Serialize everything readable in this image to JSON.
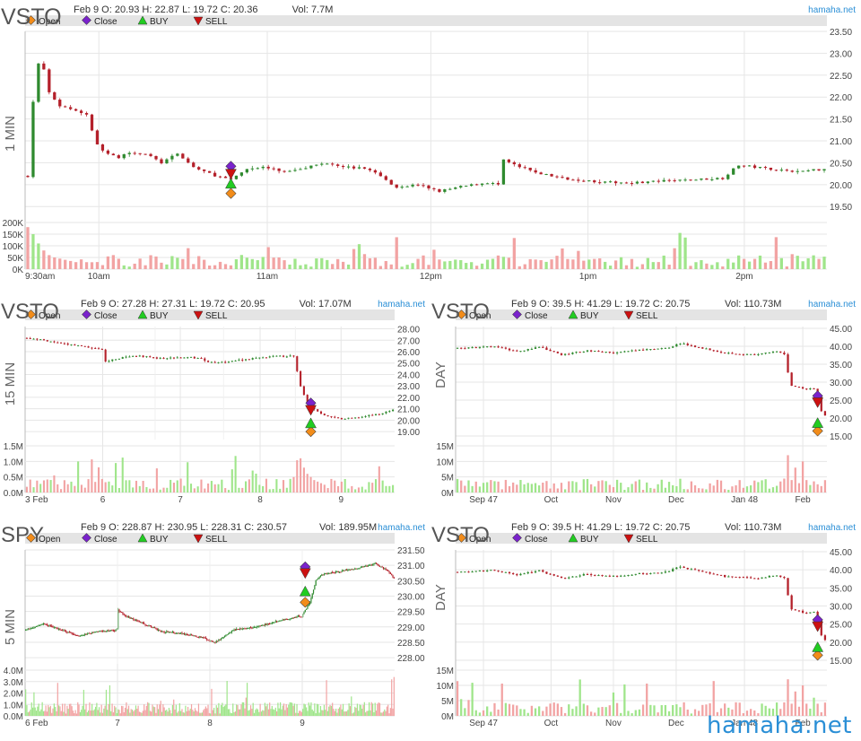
{
  "watermark": "hamaha.net",
  "colors": {
    "up": "#2f8a2f",
    "down": "#b4202a",
    "vol_up": "#9fe58a",
    "vol_down": "#f2a3a3",
    "legend_bg": "#e4e4e4",
    "grid": "#e6e6e6",
    "brand": "#2b8fd6",
    "open_marker": "#f28c1a",
    "close_marker": "#7a22cc",
    "buy_marker": "#22cc22",
    "sell_marker": "#cc1111"
  },
  "legend": [
    {
      "label": "Open",
      "icon": "diamond",
      "color": "#f28c1a"
    },
    {
      "label": "Close",
      "icon": "diamond",
      "color": "#7a22cc"
    },
    {
      "label": "BUY",
      "icon": "triangle-up",
      "color": "#22cc22"
    },
    {
      "label": "SELL",
      "icon": "triangle-down",
      "color": "#cc1111"
    }
  ],
  "chart_data": [
    {
      "id": "p1",
      "type": "candlestick",
      "symbol": "VSTO",
      "timeframe_label": "1 MIN",
      "header": "Feb 9 O: 20.93 H: 22.87 L: 19.72 C: 20.36",
      "volume_label": "Vol: 7.7M",
      "site": "hamaha.net",
      "ylim": [
        19.3,
        23.5
      ],
      "y_ticks": [
        "23.50",
        "23.00",
        "22.50",
        "22.00",
        "21.50",
        "21.00",
        "20.50",
        "20.00",
        "19.50"
      ],
      "vol_ticks": [
        "200K",
        "150K",
        "100K",
        "50K",
        "0K"
      ],
      "vol_max": 200000,
      "x_ticks": [
        {
          "label": "9:30am",
          "pos": 0
        },
        {
          "label": "10am",
          "pos": 0.092
        },
        {
          "label": "11am",
          "pos": 0.302
        },
        {
          "label": "12pm",
          "pos": 0.506
        },
        {
          "label": "1pm",
          "pos": 0.702
        },
        {
          "label": "2pm",
          "pos": 0.897
        }
      ],
      "n": 150,
      "anchors": [
        [
          0,
          20.2
        ],
        [
          0.5,
          21.2
        ],
        [
          1.5,
          22.6
        ],
        [
          2.5,
          22.9
        ],
        [
          4,
          22.1
        ],
        [
          6,
          21.8
        ],
        [
          9,
          21.7
        ],
        [
          11,
          21.6
        ],
        [
          13,
          20.9
        ],
        [
          15,
          20.7
        ],
        [
          17,
          20.6
        ],
        [
          19,
          20.75
        ],
        [
          22,
          20.7
        ],
        [
          25,
          20.5
        ],
        [
          28,
          20.7
        ],
        [
          31,
          20.4
        ],
        [
          34,
          20.25
        ],
        [
          38,
          20.1
        ],
        [
          39,
          20.2
        ],
        [
          41,
          20.36
        ],
        [
          44,
          20.4
        ],
        [
          48,
          20.3
        ],
        [
          52,
          20.4
        ],
        [
          56,
          20.5
        ],
        [
          60,
          20.4
        ],
        [
          64,
          20.35
        ],
        [
          67,
          20.1
        ],
        [
          69,
          19.95
        ],
        [
          73,
          20.0
        ],
        [
          77,
          19.85
        ],
        [
          81,
          19.95
        ],
        [
          86,
          20.05
        ],
        [
          88,
          20.0
        ],
        [
          89,
          20.55
        ],
        [
          92,
          20.4
        ],
        [
          96,
          20.25
        ],
        [
          100,
          20.15
        ],
        [
          104,
          20.1
        ],
        [
          108,
          20.05
        ],
        [
          114,
          20.05
        ],
        [
          122,
          20.1
        ],
        [
          130,
          20.15
        ],
        [
          133,
          20.45
        ],
        [
          136,
          20.4
        ],
        [
          140,
          20.35
        ],
        [
          144,
          20.3
        ],
        [
          149,
          20.36
        ]
      ],
      "volume": [
        180000,
        150000,
        110000,
        80000,
        60000,
        50000,
        45000,
        40000,
        35000,
        30000
      ],
      "markers": {
        "idx": 38,
        "open": 19.8,
        "close": 20.42,
        "buy": 20.02,
        "sell": 20.25
      }
    },
    {
      "id": "p2",
      "type": "candlestick",
      "symbol": "VSTO",
      "timeframe_label": "15 MIN",
      "header": "Feb 9 O: 27.28 H: 27.31 L: 19.72 C: 20.95",
      "volume_label": "Vol: 17.07M",
      "site": "hamaha.net",
      "ylim": [
        18.3,
        28.2
      ],
      "y_ticks": [
        "28.00",
        "27.00",
        "26.00",
        "25.00",
        "24.00",
        "23.00",
        "22.00",
        "21.00",
        "20.00",
        "19.00"
      ],
      "vol_ticks": [
        "1.5M",
        "1.0M",
        "0.5M",
        "0.0M"
      ],
      "vol_max": 1500000,
      "x_ticks": [
        {
          "label": "3 Feb",
          "pos": 0.0
        },
        {
          "label": "6",
          "pos": 0.21
        },
        {
          "label": "7",
          "pos": 0.42
        },
        {
          "label": "8",
          "pos": 0.636
        },
        {
          "label": "9",
          "pos": 0.855
        }
      ],
      "n": 108,
      "gaps": [
        [
          37,
          38
        ],
        [
          57,
          58
        ],
        [
          78,
          79
        ]
      ],
      "anchors": [
        [
          0,
          27.2
        ],
        [
          5,
          27.0
        ],
        [
          10,
          26.7
        ],
        [
          16,
          26.5
        ],
        [
          20,
          26.3
        ],
        [
          22,
          26.2
        ],
        [
          23,
          25.1
        ],
        [
          25,
          25.3
        ],
        [
          28,
          25.5
        ],
        [
          33,
          25.6
        ],
        [
          37,
          25.5
        ],
        [
          38,
          25.4
        ],
        [
          43,
          25.45
        ],
        [
          48,
          25.5
        ],
        [
          51,
          25.4
        ],
        [
          52,
          25.2
        ],
        [
          55,
          25.0
        ],
        [
          60,
          25.2
        ],
        [
          66,
          25.4
        ],
        [
          72,
          25.6
        ],
        [
          78,
          25.6
        ],
        [
          80,
          23.0
        ],
        [
          82,
          21.5
        ],
        [
          84,
          21.0
        ],
        [
          86,
          20.6
        ],
        [
          88,
          20.3
        ],
        [
          92,
          20.1
        ],
        [
          96,
          20.2
        ],
        [
          100,
          20.4
        ],
        [
          104,
          20.6
        ],
        [
          107,
          20.95
        ]
      ],
      "volume": [
        1100000,
        800000,
        600000,
        500000,
        400000,
        350000,
        300000,
        250000
      ],
      "markers": {
        "idx": 83,
        "open": 19.0,
        "close": 21.5,
        "buy": 19.72,
        "sell": 20.9
      }
    },
    {
      "id": "p3",
      "type": "candlestick",
      "symbol": "VSTO",
      "timeframe_label": "DAY",
      "header": "Feb 9 O: 39.5 H: 41.29 L: 19.72 C: 20.75",
      "volume_label": "Vol: 110.73M",
      "site": "hamaha.net",
      "ylim": [
        14.0,
        45.5
      ],
      "y_ticks": [
        "45.00",
        "40.00",
        "35.00",
        "30.00",
        "25.00",
        "20.00",
        "15.00"
      ],
      "vol_ticks": [
        "15M",
        "10M",
        "5M",
        "0M"
      ],
      "vol_max": 15000000,
      "x_ticks": [
        {
          "label": "Sep 47",
          "pos": 0.075
        },
        {
          "label": "Oct",
          "pos": 0.257
        },
        {
          "label": "Nov",
          "pos": 0.425
        },
        {
          "label": "Dec",
          "pos": 0.594
        },
        {
          "label": "Jan 48",
          "pos": 0.778
        },
        {
          "label": "Feb",
          "pos": 0.935
        }
      ],
      "n": 100,
      "anchors": [
        [
          0,
          39.4
        ],
        [
          10,
          39.9
        ],
        [
          16,
          38.6
        ],
        [
          22,
          39.8
        ],
        [
          28,
          37.6
        ],
        [
          35,
          38.8
        ],
        [
          42,
          38.2
        ],
        [
          50,
          39.0
        ],
        [
          56,
          39.4
        ],
        [
          60,
          40.8
        ],
        [
          66,
          39.5
        ],
        [
          72,
          38.2
        ],
        [
          80,
          37.6
        ],
        [
          86,
          38.5
        ],
        [
          88,
          37.8
        ],
        [
          89,
          32.8
        ],
        [
          90,
          29.0
        ],
        [
          94,
          28.1
        ],
        [
          96,
          28.3
        ],
        [
          97,
          26.0
        ],
        [
          98,
          22.0
        ],
        [
          99,
          20.75
        ]
      ],
      "volume": [
        12000000,
        4000000,
        8000000,
        3000000,
        10000000,
        4000000
      ],
      "markers": {
        "idx": 97,
        "open": 16.4,
        "close": 26.2,
        "buy": 18.6,
        "sell": 24.4
      }
    },
    {
      "id": "p4",
      "type": "candlestick",
      "symbol": "SPY",
      "timeframe_label": "5 MIN",
      "header": "Feb 9 O: 228.87 H: 230.95 L: 228.31 C: 230.57",
      "volume_label": "Vol: 189.95M",
      "site": "hamaha.net",
      "ylim": [
        227.8,
        231.5
      ],
      "y_ticks": [
        "231.50",
        "231.00",
        "230.50",
        "230.00",
        "229.50",
        "229.00",
        "228.50",
        "228.00"
      ],
      "vol_ticks": [
        "4.0M",
        "3.0M",
        "2.0M",
        "1.0M",
        "0.0M"
      ],
      "vol_max": 4000000,
      "x_ticks": [
        {
          "label": "6 Feb",
          "pos": 0.0
        },
        {
          "label": "7",
          "pos": 0.25
        },
        {
          "label": "8",
          "pos": 0.5
        },
        {
          "label": "9",
          "pos": 0.75
        }
      ],
      "n": 312,
      "gaps": [
        [
          77,
          78
        ],
        [
          155,
          156
        ],
        [
          233,
          234
        ]
      ],
      "anchors": [
        [
          0,
          228.9
        ],
        [
          15,
          229.1
        ],
        [
          30,
          228.9
        ],
        [
          45,
          228.7
        ],
        [
          60,
          228.85
        ],
        [
          77,
          228.9
        ],
        [
          78,
          229.55
        ],
        [
          85,
          229.35
        ],
        [
          100,
          229.1
        ],
        [
          115,
          228.85
        ],
        [
          130,
          228.8
        ],
        [
          150,
          228.65
        ],
        [
          155,
          228.55
        ],
        [
          160,
          228.5
        ],
        [
          175,
          228.9
        ],
        [
          195,
          229.0
        ],
        [
          215,
          229.2
        ],
        [
          230,
          229.35
        ],
        [
          233,
          229.3
        ],
        [
          234,
          229.4
        ],
        [
          240,
          229.8
        ],
        [
          245,
          230.5
        ],
        [
          250,
          230.7
        ],
        [
          265,
          230.8
        ],
        [
          280,
          230.9
        ],
        [
          295,
          231.05
        ],
        [
          305,
          230.85
        ],
        [
          311,
          230.57
        ]
      ],
      "volume": [
        3400000,
        1500000,
        1300000,
        1200000
      ],
      "markers": {
        "idx": 236,
        "open": 229.8,
        "close": 230.95,
        "buy": 230.15,
        "sell": 230.75
      }
    },
    {
      "id": "p5",
      "type": "candlestick",
      "symbol": "VSTO",
      "timeframe_label": "DAY",
      "header": "Feb 9 O: 39.5 H: 41.29 L: 19.72 C: 20.75",
      "volume_label": "Vol: 110.73M",
      "site": "hamaha.net",
      "ylim": [
        14.0,
        45.5
      ],
      "y_ticks": [
        "45.00",
        "40.00",
        "35.00",
        "30.00",
        "25.00",
        "20.00",
        "15.00"
      ],
      "vol_ticks": [
        "15M",
        "10M",
        "5M",
        "0M"
      ],
      "vol_max": 15000000,
      "x_ticks": [
        {
          "label": "Sep 47",
          "pos": 0.075
        },
        {
          "label": "Oct",
          "pos": 0.257
        },
        {
          "label": "Nov",
          "pos": 0.425
        },
        {
          "label": "Dec",
          "pos": 0.594
        },
        {
          "label": "Jan 48",
          "pos": 0.778
        },
        {
          "label": "Feb",
          "pos": 0.935
        }
      ],
      "n": 100,
      "anchors": [
        [
          0,
          39.4
        ],
        [
          10,
          39.9
        ],
        [
          16,
          38.6
        ],
        [
          22,
          39.8
        ],
        [
          28,
          37.6
        ],
        [
          35,
          38.8
        ],
        [
          42,
          38.2
        ],
        [
          50,
          39.0
        ],
        [
          56,
          39.4
        ],
        [
          60,
          40.8
        ],
        [
          66,
          39.5
        ],
        [
          72,
          38.2
        ],
        [
          80,
          37.6
        ],
        [
          86,
          38.5
        ],
        [
          88,
          37.8
        ],
        [
          89,
          32.8
        ],
        [
          90,
          29.0
        ],
        [
          94,
          28.1
        ],
        [
          96,
          28.3
        ],
        [
          97,
          26.0
        ],
        [
          98,
          22.0
        ],
        [
          99,
          20.75
        ]
      ],
      "volume": [
        12000000,
        4000000,
        8000000,
        3000000,
        10000000,
        4000000
      ],
      "markers": {
        "idx": 97,
        "open": 16.4,
        "close": 26.2,
        "buy": 18.6,
        "sell": 24.4
      }
    }
  ]
}
